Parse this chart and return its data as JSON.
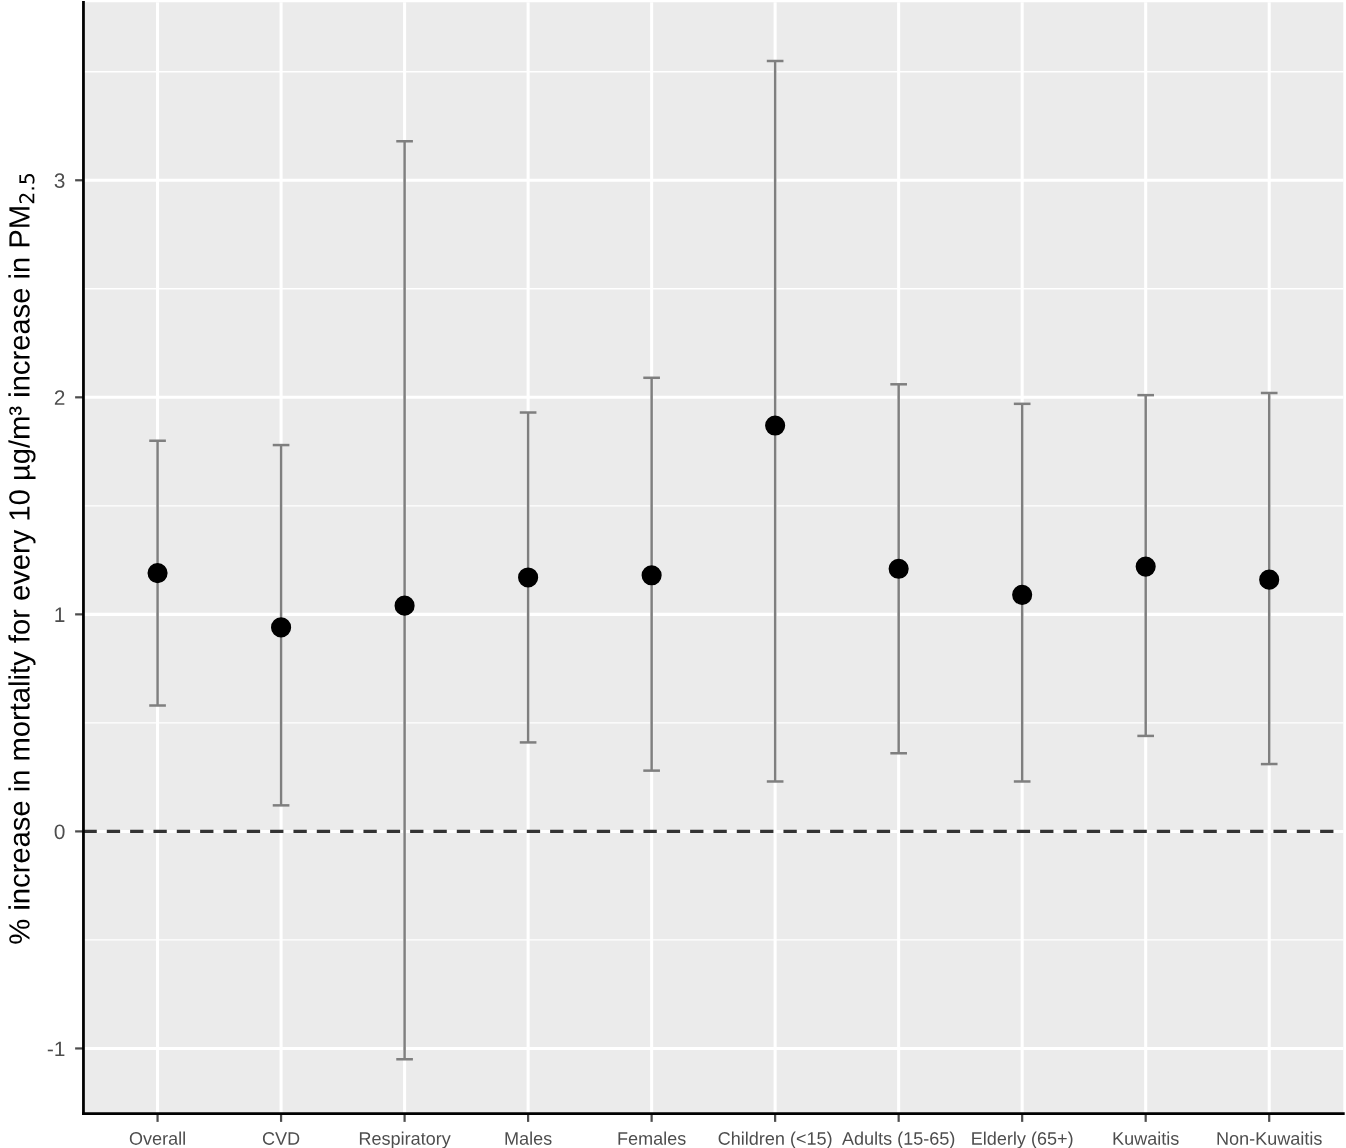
{
  "chart_data": {
    "type": "scatter",
    "ylabel": "% increase in mortality for every 10 µg/m³ increase in PM$_{2.5}$",
    "categories": [
      "Overall",
      "CVD",
      "Respiratory",
      "Males",
      "Females",
      "Children (<15)",
      "Adults (15-65)",
      "Elderly (65+)",
      "Kuwaitis",
      "Non-Kuwaitis"
    ],
    "values": [
      1.19,
      0.94,
      1.04,
      1.17,
      1.18,
      1.87,
      1.21,
      1.09,
      1.22,
      1.16
    ],
    "errors": [
      [
        0.58,
        1.8
      ],
      [
        0.12,
        1.78
      ],
      [
        -1.05,
        3.18
      ],
      [
        0.41,
        1.93
      ],
      [
        0.28,
        2.09
      ],
      [
        0.23,
        3.55
      ],
      [
        0.36,
        2.06
      ],
      [
        0.23,
        1.97
      ],
      [
        0.44,
        2.01
      ],
      [
        0.31,
        2.02
      ]
    ],
    "color": "#000000",
    "marker": "circle",
    "ylim": [
      -1.3,
      3.82
    ],
    "yticks": [
      -1,
      0,
      1,
      2,
      3
    ],
    "grid": true,
    "ref_lines": [
      {
        "axis": "y",
        "value": 0,
        "color": "#333333",
        "line_style": "dashed"
      }
    ]
  }
}
